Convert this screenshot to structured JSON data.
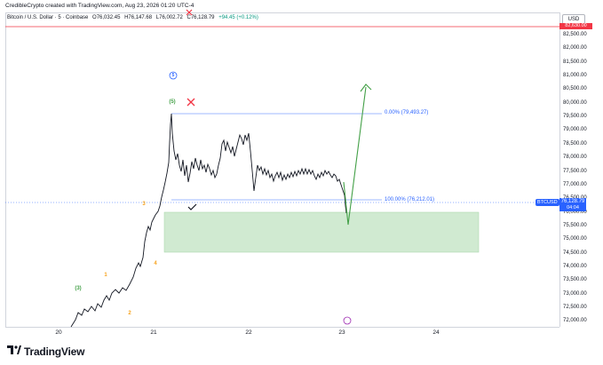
{
  "header": {
    "attribution": "CredibleCrypto created with TradingView.com, Aug 23, 2026 01:20 UTC-4"
  },
  "legend": {
    "symbol": "Bitcoin / U.S. Dollar · 5 · Coinbase",
    "open": "O76,032.45",
    "high": "H76,147.68",
    "low": "L76,002.72",
    "close": "C76,128.79",
    "change": "+94.45 (+0.12%)"
  },
  "currency_button": "USD",
  "price_axis": {
    "labels": [
      "82,500.00",
      "82,000.00",
      "81,500.00",
      "81,000.00",
      "80,500.00",
      "80,000.00",
      "79,500.00",
      "79,000.00",
      "78,500.00",
      "78,000.00",
      "77,500.00",
      "77,000.00",
      "76,500.00",
      "76,000.00",
      "75,500.00",
      "75,000.00",
      "74,500.00",
      "74,000.00",
      "73,500.00",
      "73,000.00",
      "72,500.00",
      "72,000.00"
    ],
    "current_price": "76,128.79",
    "countdown": "04:04",
    "red_level_label": "82,630.00"
  },
  "time_axis": {
    "labels": [
      "20",
      "21",
      "22",
      "23",
      "24"
    ]
  },
  "ticker_label": "BTCUSD",
  "fib": {
    "top_label": "0.00% (79,493.27)",
    "bottom_label": "100.00% (76,212.01)"
  },
  "wave_labels": {
    "w3": "(3)",
    "w5": "(5)",
    "w5_circle": "5",
    "sub1": "1",
    "sub2": "2",
    "sub3": "3",
    "sub4": "4"
  },
  "colors": {
    "fib": "#2962ff",
    "zone": "#c8e6c9",
    "arrow": "#43a047",
    "red": "#f23645",
    "orange": "#f7a21b",
    "green_label": "#43a047"
  },
  "icons": [
    "x-mark-icon",
    "check-mark-icon",
    "tradingview-logo-icon",
    "flag-icon"
  ],
  "footer": {
    "brand": "TradingView"
  }
}
